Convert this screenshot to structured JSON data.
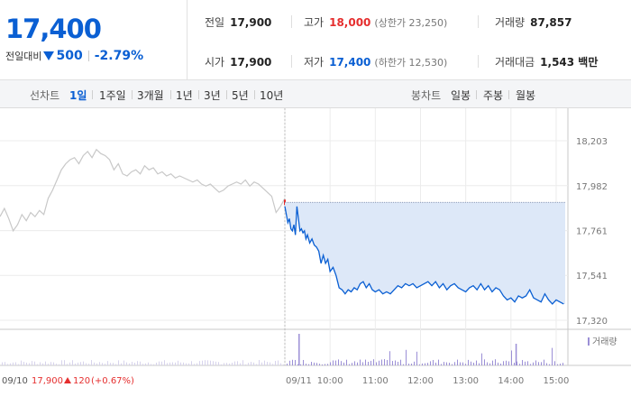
{
  "summary": {
    "price": "17,400",
    "change_label": "전일대비",
    "change_amount": "500",
    "change_rate": "-2.79%",
    "prev_close_label": "전일",
    "prev_close": "17,900",
    "high_label": "고가",
    "high": "18,000",
    "upper_limit": "(상한가 23,250)",
    "volume_label": "거래량",
    "volume": "87,857",
    "open_label": "시가",
    "open": "17,900",
    "low_label": "저가",
    "low": "17,400",
    "lower_limit": "(하한가 12,530)",
    "amount_label": "거래대금",
    "amount": "1,543 백만"
  },
  "tabs": {
    "line_label": "선차트",
    "periods": [
      "1일",
      "1주일",
      "3개월",
      "1년",
      "3년",
      "5년",
      "10년"
    ],
    "active": "1일",
    "candle_label": "봉차트",
    "candles": [
      "일봉",
      "주봉",
      "월봉"
    ]
  },
  "colors": {
    "up": "#e52e2e",
    "down": "#0a5fd3",
    "fill": "#dde8f8",
    "prev": "#c8c8c8",
    "volume": "#9b8fd6"
  },
  "chart_data": {
    "type": "line",
    "y_ticks": [
      "18,203",
      "17,982",
      "17,761",
      "17,541",
      "17,320"
    ],
    "y_tick_values": [
      18203,
      17982,
      17761,
      17541,
      17320
    ],
    "ylim": [
      17320,
      18203
    ],
    "x_ticks": [
      "09/11",
      "10:00",
      "11:00",
      "12:00",
      "13:00",
      "14:00",
      "15:00"
    ],
    "x_tick_minutes": [
      0,
      60,
      120,
      180,
      240,
      300,
      360
    ],
    "session_start": "09:00",
    "session_end": "15:30",
    "base_line": 17900,
    "prev_day_label": "09/10",
    "prev_day_close": "17,900",
    "prev_day_change": "120",
    "prev_day_rate": "(+0.67%)",
    "volume_label": "거래량",
    "prev_day_series": {
      "name": "09/10",
      "values": [
        17830,
        17870,
        17820,
        17760,
        17790,
        17840,
        17810,
        17850,
        17830,
        17860,
        17840,
        17920,
        17960,
        18010,
        18060,
        18090,
        18110,
        18120,
        18090,
        18130,
        18150,
        18120,
        18160,
        18140,
        18130,
        18110,
        18060,
        18090,
        18040,
        18030,
        18050,
        18060,
        18040,
        18080,
        18060,
        18070,
        18040,
        18050,
        18030,
        18040,
        18020,
        18030,
        18020,
        18010,
        18000,
        18010,
        17990,
        17980,
        17990,
        17970,
        17950,
        17960,
        17980,
        17990,
        18000,
        17990,
        18010,
        17980,
        18000,
        17990,
        17970,
        17950,
        17930,
        17850,
        17880,
        17920
      ]
    },
    "series": [
      {
        "name": "09/11",
        "times": [
          0,
          2,
          4,
          6,
          8,
          10,
          12,
          14,
          16,
          18,
          20,
          22,
          24,
          26,
          28,
          30,
          33,
          36,
          39,
          42,
          45,
          48,
          51,
          54,
          57,
          60,
          64,
          68,
          72,
          76,
          80,
          84,
          88,
          92,
          96,
          100,
          104,
          108,
          112,
          116,
          120,
          125,
          130,
          135,
          140,
          145,
          150,
          155,
          160,
          165,
          170,
          175,
          180,
          185,
          190,
          195,
          200,
          205,
          210,
          215,
          220,
          225,
          230,
          235,
          240,
          245,
          250,
          255,
          260,
          265,
          270,
          275,
          280,
          285,
          290,
          295,
          300,
          305,
          310,
          315,
          320,
          325,
          330,
          335,
          340,
          345,
          350,
          355,
          360,
          365,
          370
        ],
        "values": [
          17880,
          17840,
          17800,
          17820,
          17770,
          17760,
          17790,
          17740,
          17880,
          17820,
          17760,
          17770,
          17750,
          17760,
          17720,
          17740,
          17700,
          17720,
          17690,
          17680,
          17660,
          17600,
          17640,
          17600,
          17620,
          17560,
          17580,
          17540,
          17480,
          17470,
          17450,
          17470,
          17460,
          17480,
          17470,
          17500,
          17510,
          17480,
          17500,
          17470,
          17460,
          17470,
          17450,
          17460,
          17450,
          17470,
          17490,
          17480,
          17500,
          17490,
          17500,
          17480,
          17490,
          17500,
          17510,
          17490,
          17510,
          17480,
          17500,
          17470,
          17490,
          17500,
          17480,
          17470,
          17460,
          17480,
          17490,
          17470,
          17500,
          17470,
          17490,
          17460,
          17480,
          17470,
          17440,
          17420,
          17430,
          17410,
          17440,
          17430,
          17440,
          17470,
          17430,
          17420,
          17410,
          17450,
          17420,
          17400,
          17420,
          17410,
          17400
        ]
      }
    ]
  }
}
